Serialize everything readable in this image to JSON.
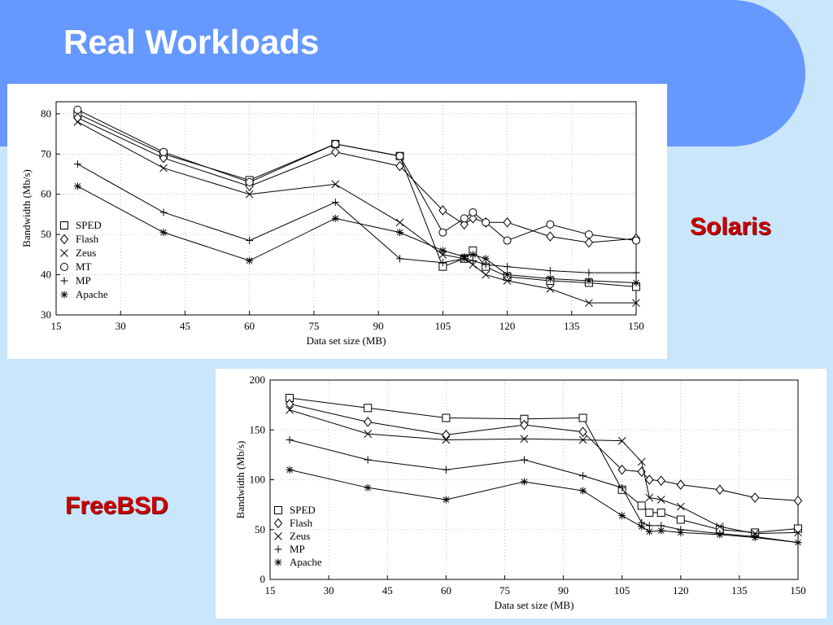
{
  "slide": {
    "title": "Real Workloads",
    "background_color": "#c9e6fb",
    "header_color": "#6699ff"
  },
  "labels": {
    "solaris": "Solaris",
    "freebsd": "FreeBSD",
    "color": "#cc0000"
  },
  "chart_data": [
    {
      "id": "solaris",
      "type": "line",
      "xlabel": "Data set size (MB)",
      "ylabel": "Bandwidth (Mb/s)",
      "xlim": [
        15,
        150
      ],
      "ylim": [
        30,
        83
      ],
      "xticks": [
        15,
        30,
        45,
        60,
        75,
        90,
        105,
        120,
        135,
        150
      ],
      "yticks": [
        30,
        40,
        50,
        60,
        70,
        80
      ],
      "grid": true,
      "legend_position": "lower-left",
      "series": [
        {
          "name": "SPED",
          "marker": "square",
          "x": [
            20,
            40,
            60,
            80,
            95,
            105,
            110,
            112,
            115,
            120,
            130,
            139,
            150
          ],
          "y": [
            80,
            70,
            63.5,
            72.5,
            69.5,
            42,
            44,
            46,
            42,
            39.5,
            38.5,
            38,
            37
          ]
        },
        {
          "name": "Flash",
          "marker": "diamond",
          "x": [
            20,
            40,
            60,
            80,
            95,
            105,
            110,
            112,
            115,
            120,
            130,
            139,
            150
          ],
          "y": [
            79,
            69,
            62,
            70.5,
            67,
            56,
            52.5,
            54,
            53,
            53,
            49.5,
            48,
            49
          ]
        },
        {
          "name": "Zeus",
          "marker": "x",
          "x": [
            20,
            40,
            60,
            80,
            95,
            105,
            110,
            112,
            115,
            120,
            130,
            139,
            150
          ],
          "y": [
            78,
            66.5,
            60,
            62.5,
            53,
            45,
            44,
            42.5,
            40,
            38.5,
            36.5,
            33,
            33
          ]
        },
        {
          "name": "MT",
          "marker": "circle",
          "x": [
            20,
            40,
            60,
            80,
            95,
            105,
            110,
            112,
            115,
            120,
            130,
            139,
            150
          ],
          "y": [
            81,
            70.5,
            63,
            72.5,
            69.5,
            50.5,
            54,
            55.5,
            53,
            48.5,
            52.5,
            50,
            48.5
          ]
        },
        {
          "name": "MP",
          "marker": "plus",
          "x": [
            20,
            40,
            60,
            80,
            95,
            105,
            110,
            112,
            115,
            120,
            130,
            139,
            150
          ],
          "y": [
            67.5,
            55.5,
            48.5,
            58,
            44,
            43,
            44,
            43.5,
            42.5,
            42,
            41,
            40.5,
            40.5
          ]
        },
        {
          "name": "Apache",
          "marker": "asterisk",
          "x": [
            20,
            40,
            60,
            80,
            95,
            105,
            110,
            112,
            115,
            120,
            130,
            139,
            150
          ],
          "y": [
            62,
            50.5,
            43.5,
            54,
            50.5,
            46,
            44.5,
            45,
            44,
            40,
            39,
            38.5,
            38
          ]
        }
      ]
    },
    {
      "id": "freebsd",
      "type": "line",
      "xlabel": "Data set size (MB)",
      "ylabel": "Bandwidth (Mb/s)",
      "xlim": [
        15,
        150
      ],
      "ylim": [
        0,
        200
      ],
      "xticks": [
        15,
        30,
        45,
        60,
        75,
        90,
        105,
        120,
        135,
        150
      ],
      "yticks": [
        0,
        50,
        100,
        150,
        200
      ],
      "grid": true,
      "legend_position": "lower-left",
      "series": [
        {
          "name": "SPED",
          "marker": "square",
          "x": [
            20,
            40,
            60,
            80,
            95,
            105,
            110,
            112,
            115,
            120,
            130,
            139,
            150
          ],
          "y": [
            182,
            172,
            162,
            161,
            162,
            90,
            74,
            67,
            67,
            60,
            50,
            47,
            51
          ]
        },
        {
          "name": "Flash",
          "marker": "diamond",
          "x": [
            20,
            40,
            60,
            80,
            95,
            105,
            110,
            112,
            115,
            120,
            130,
            139,
            150
          ],
          "y": [
            176,
            158,
            145,
            155,
            148,
            110,
            108,
            100,
            99,
            95,
            90,
            82,
            79
          ]
        },
        {
          "name": "Zeus",
          "marker": "x",
          "x": [
            20,
            40,
            60,
            80,
            95,
            105,
            110,
            112,
            115,
            120,
            130,
            139,
            150
          ],
          "y": [
            170,
            146,
            140,
            141,
            140,
            139,
            118,
            82,
            80,
            73,
            53,
            46,
            47
          ]
        },
        {
          "name": "MP",
          "marker": "plus",
          "x": [
            20,
            40,
            60,
            80,
            95,
            105,
            110,
            112,
            115,
            120,
            130,
            139,
            150
          ],
          "y": [
            140,
            120,
            110,
            120,
            104,
            92,
            57,
            54,
            54,
            50,
            46,
            43,
            37
          ]
        },
        {
          "name": "Apache",
          "marker": "asterisk",
          "x": [
            20,
            40,
            60,
            80,
            95,
            105,
            110,
            112,
            115,
            120,
            130,
            139,
            150
          ],
          "y": [
            110,
            92,
            80,
            98,
            89,
            64,
            53,
            48,
            49,
            47,
            45,
            42,
            37
          ]
        }
      ]
    }
  ]
}
